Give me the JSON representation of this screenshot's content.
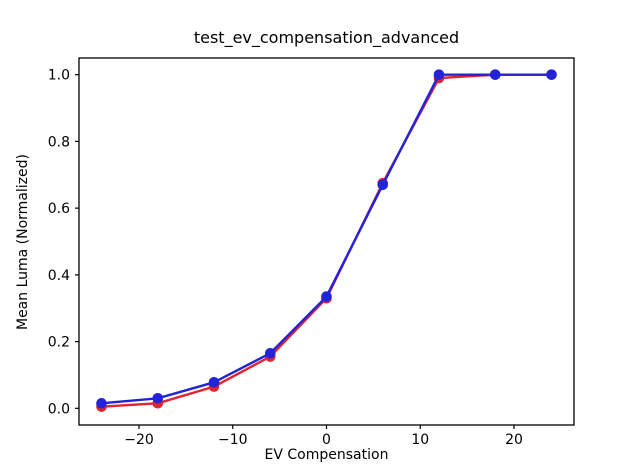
{
  "figure": {
    "background": "#ffffff"
  },
  "chart_data": {
    "type": "line",
    "title": "test_ev_compensation_advanced",
    "xlabel": "EV Compensation",
    "ylabel": "Mean Luma (Normalized)",
    "x": [
      -24,
      -18,
      -12,
      -6,
      0,
      6,
      12,
      18,
      24
    ],
    "series": [
      {
        "name": "red-series",
        "color": "#e02430",
        "marker": "o",
        "values": [
          0.005,
          0.015,
          0.065,
          0.155,
          0.33,
          0.675,
          0.99,
          1.0,
          1.0
        ]
      },
      {
        "name": "blue-series",
        "color": "#2323d9",
        "marker": "o",
        "values": [
          0.015,
          0.03,
          0.078,
          0.165,
          0.335,
          0.67,
          1.0,
          1.0,
          1.0
        ]
      }
    ],
    "xlim": [
      -26.4,
      26.4
    ],
    "ylim": [
      -0.05,
      1.05
    ],
    "xticks": {
      "values": [
        -20,
        -10,
        0,
        10,
        20
      ],
      "labels": [
        "−20",
        "−10",
        "0",
        "10",
        "20"
      ]
    },
    "yticks": {
      "values": [
        0.0,
        0.2,
        0.4,
        0.6,
        0.8,
        1.0
      ],
      "labels": [
        "0.0",
        "0.2",
        "0.4",
        "0.6",
        "0.8",
        "1.0"
      ]
    },
    "grid": false,
    "legend": null,
    "axis_color": "#000000"
  }
}
